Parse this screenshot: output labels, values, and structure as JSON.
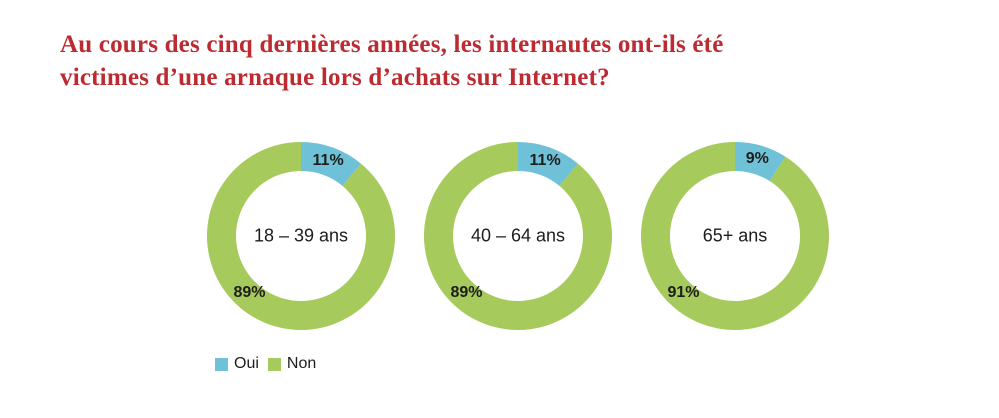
{
  "title": {
    "lines": [
      "Au cours des cinq dernières années, les internautes ont-ils été",
      "victimes d’une arnaque lors d’achats sur Internet?"
    ]
  },
  "colors": {
    "title_red": "#bb2b31",
    "oui_blue": "#6fc1d8",
    "non_green": "#a6ca5c",
    "label_black": "#1d1d1b"
  },
  "legend": {
    "items": [
      {
        "label": "Oui",
        "color_key": "oui_blue"
      },
      {
        "label": "Non",
        "color_key": "non_green"
      }
    ]
  },
  "chart_data": {
    "type": "pie",
    "variant": "donut",
    "title": "Au cours des cinq dernières années, les internautes ont-ils été victimes d’une arnaque lors d’achats sur Internet?",
    "unit": "%",
    "legend_position": "bottom-left",
    "series_labels": [
      "Oui",
      "Non"
    ],
    "charts": [
      {
        "center_label": "18 – 39 ans",
        "oui": 11,
        "non": 89
      },
      {
        "center_label": "40 – 64 ans",
        "oui": 11,
        "non": 89
      },
      {
        "center_label": "65+ ans",
        "oui": 9,
        "non": 91
      }
    ]
  }
}
